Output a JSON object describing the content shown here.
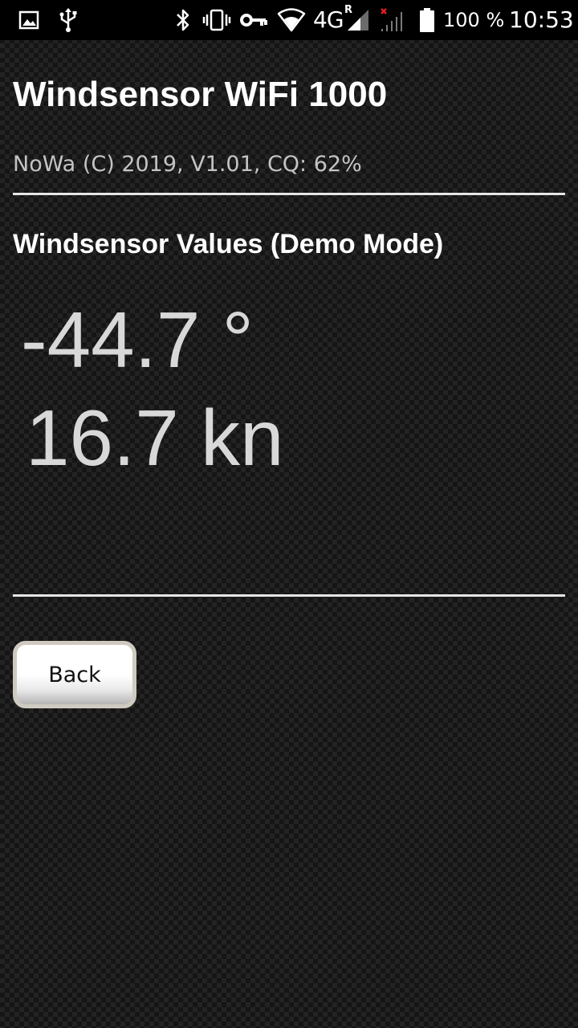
{
  "status_bar": {
    "icons": [
      "image-notification-icon",
      "usb-icon",
      "bluetooth-icon",
      "vibrate-icon",
      "vpn-key-icon",
      "wifi-icon",
      "4g-signal-icon",
      "no-signal-icon",
      "battery-icon"
    ],
    "network_type": "4G",
    "roaming_indicator": "R",
    "battery_percent": "100 %",
    "time": "10:53"
  },
  "header": {
    "title": "Windsensor WiFi 1000",
    "subtitle": "NoWa (C) 2019, V1.01, CQ: 62%"
  },
  "values_section": {
    "title": "Windsensor Values (Demo Mode)",
    "wind_direction": "-44.7 °",
    "wind_speed": "16.7 kn"
  },
  "actions": {
    "back_label": "Back"
  },
  "colors": {
    "background": "#151515",
    "checker": "#232323",
    "status_bar": "#000000",
    "title_text": "#ffffff",
    "subtitle_text": "#c4c4c4",
    "reading_text": "#d8d8d8",
    "divider": "#e6e6e6",
    "button_border": "#cfcac0",
    "button_text": "#111111"
  }
}
